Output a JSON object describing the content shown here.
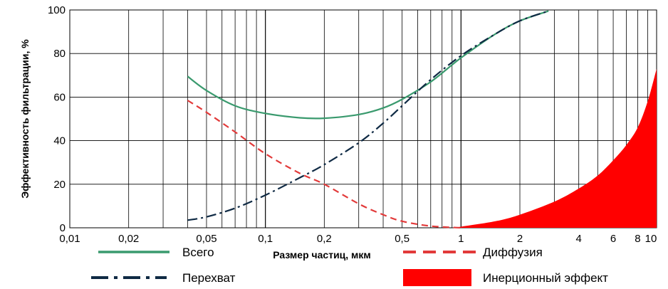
{
  "chart_data": {
    "type": "line",
    "xlabel": "Размер частиц, мкм",
    "ylabel": "Эффективность фильтрации, %",
    "x_scale": "log",
    "xlim": [
      0.01,
      10
    ],
    "ylim": [
      0,
      100
    ],
    "x_ticks": [
      {
        "value": 0.01,
        "label": "0,01"
      },
      {
        "value": 0.02,
        "label": "0,02"
      },
      {
        "value": 0.05,
        "label": "0,05"
      },
      {
        "value": 0.1,
        "label": "0,1"
      },
      {
        "value": 0.2,
        "label": "0,2"
      },
      {
        "value": 0.5,
        "label": "0,5"
      },
      {
        "value": 1,
        "label": "1"
      },
      {
        "value": 2,
        "label": "2"
      },
      {
        "value": 4,
        "label": "4"
      },
      {
        "value": 6,
        "label": "6"
      },
      {
        "value": 8,
        "label": "8"
      },
      {
        "value": 10,
        "label": "10"
      }
    ],
    "y_ticks": [
      {
        "value": 0,
        "label": "0"
      },
      {
        "value": 20,
        "label": "20"
      },
      {
        "value": 40,
        "label": "40"
      },
      {
        "value": 60,
        "label": "60"
      },
      {
        "value": 80,
        "label": "80"
      },
      {
        "value": 100,
        "label": "100"
      }
    ],
    "grid": true,
    "legend_position": "bottom",
    "series": [
      {
        "name": "Всего",
        "style": "solid",
        "color": "#3a9a6e",
        "points": [
          [
            0.04,
            69.5
          ],
          [
            0.05,
            63
          ],
          [
            0.07,
            56
          ],
          [
            0.1,
            52.5
          ],
          [
            0.15,
            50.5
          ],
          [
            0.2,
            50.3
          ],
          [
            0.3,
            52
          ],
          [
            0.4,
            55
          ],
          [
            0.5,
            59
          ],
          [
            0.7,
            67
          ],
          [
            1,
            78
          ],
          [
            1.5,
            89
          ],
          [
            2,
            95
          ],
          [
            2.8,
            99.5
          ]
        ]
      },
      {
        "name": "Диффузия",
        "style": "dashed",
        "color": "#e23a3a",
        "points": [
          [
            0.04,
            58.5
          ],
          [
            0.05,
            53
          ],
          [
            0.07,
            44
          ],
          [
            0.1,
            34
          ],
          [
            0.15,
            25
          ],
          [
            0.2,
            20
          ],
          [
            0.3,
            11
          ],
          [
            0.4,
            6
          ],
          [
            0.5,
            3
          ],
          [
            0.7,
            0.8
          ],
          [
            1,
            0
          ]
        ]
      },
      {
        "name": "Перехват",
        "style": "dashdot",
        "color": "#0f2a44",
        "points": [
          [
            0.04,
            3.5
          ],
          [
            0.05,
            5
          ],
          [
            0.07,
            9
          ],
          [
            0.1,
            15
          ],
          [
            0.15,
            23
          ],
          [
            0.2,
            29
          ],
          [
            0.3,
            39
          ],
          [
            0.4,
            48
          ],
          [
            0.5,
            56
          ],
          [
            0.7,
            68
          ],
          [
            1,
            79
          ],
          [
            1.5,
            89
          ],
          [
            2,
            95
          ],
          [
            2.8,
            99.5
          ]
        ]
      },
      {
        "name": "Инерционный эффект",
        "style": "area",
        "color": "#ff0000",
        "points": [
          [
            0.9,
            0
          ],
          [
            1,
            0.5
          ],
          [
            1.5,
            3
          ],
          [
            2,
            6
          ],
          [
            3,
            12
          ],
          [
            4,
            18
          ],
          [
            5,
            24
          ],
          [
            6,
            31
          ],
          [
            7,
            38
          ],
          [
            8,
            46
          ],
          [
            9,
            58
          ],
          [
            10,
            73
          ]
        ]
      }
    ]
  }
}
